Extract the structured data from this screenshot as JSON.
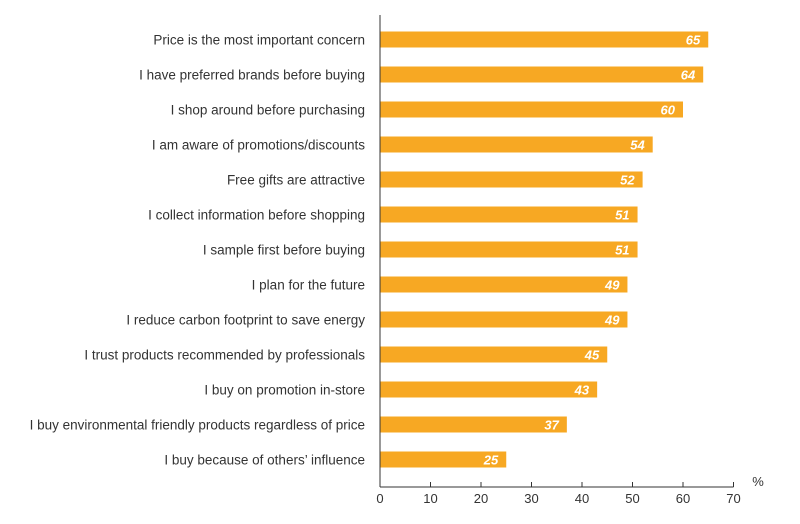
{
  "chart_data": {
    "type": "bar",
    "orientation": "horizontal",
    "categories": [
      "Price is the most important concern",
      "I have preferred brands before buying",
      "I shop around before purchasing",
      "I am aware of promotions/discounts",
      "Free gifts are attractive",
      "I collect information before shopping",
      "I sample first before buying",
      "I plan for the future",
      "I reduce carbon footprint to save energy",
      "I trust products recommended by professionals",
      "I buy on promotion in-store",
      "I buy environmental friendly products regardless of price",
      "I buy because of others’ influence"
    ],
    "values": [
      65,
      64,
      60,
      54,
      52,
      51,
      51,
      49,
      49,
      45,
      43,
      37,
      25
    ],
    "xlim": [
      0,
      70
    ],
    "xticks": [
      0,
      10,
      20,
      30,
      40,
      50,
      60,
      70
    ],
    "unit": "%",
    "bar_color": "#F7A823",
    "data_labels": true,
    "grid": false
  }
}
